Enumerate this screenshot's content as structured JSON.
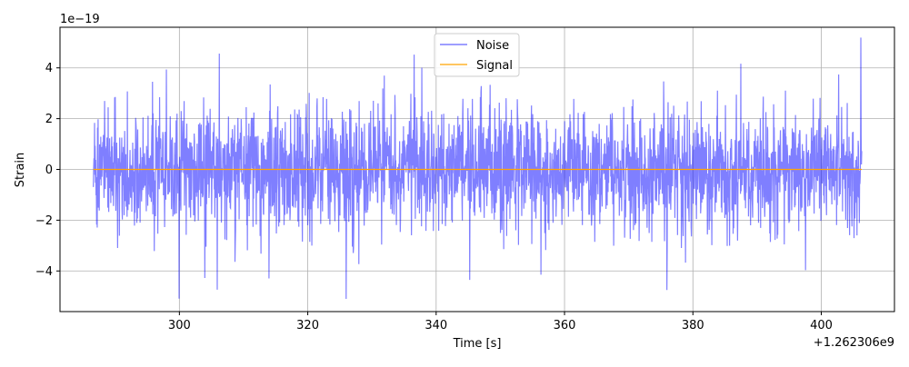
{
  "chart_data": {
    "type": "line",
    "xlabel": "Time [s]",
    "ylabel": "Strain",
    "x_offset_text": "+1.262306e9",
    "y_scale_text": "1e−19",
    "xlim": [
      1262306281.4,
      1262306411.4
    ],
    "ylim": [
      -5.6e-19,
      5.6e-19
    ],
    "xticks": [
      1262306300,
      1262306320,
      1262306340,
      1262306360,
      1262306380,
      1262306400
    ],
    "xtick_labels": [
      "300",
      "320",
      "340",
      "360",
      "380",
      "400"
    ],
    "yticks": [
      -4e-19,
      -2e-19,
      0,
      2e-19,
      4e-19
    ],
    "ytick_labels": [
      "−4",
      "−2",
      "0",
      "2",
      "4"
    ],
    "grid": true,
    "legend": {
      "placement": "upper center"
    },
    "series": [
      {
        "name": "Noise",
        "color": "#7f7fff",
        "style": "dense random noise",
        "x_range": [
          1262306286.6,
          1262306406.3
        ],
        "std": 1.15e-19,
        "min": -5.1e-19,
        "max": 5.2e-19
      },
      {
        "name": "Signal",
        "color": "#ffa500",
        "style": "flat line",
        "x_range": [
          1262306286.6,
          1262306406.3
        ],
        "values": [
          0,
          0
        ]
      }
    ]
  }
}
